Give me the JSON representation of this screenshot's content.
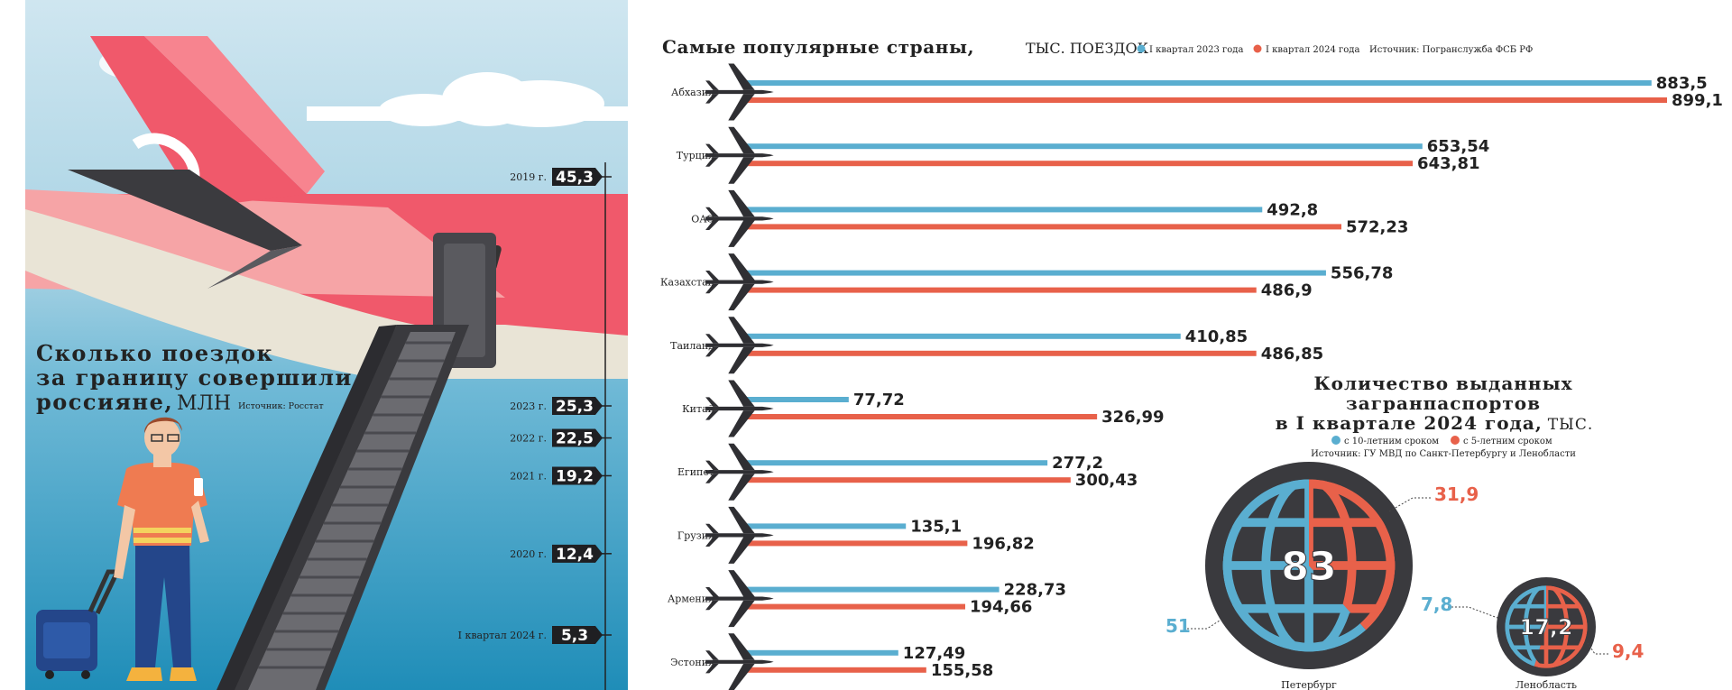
{
  "chart_data": [
    {
      "type": "bar",
      "title": "Сколько поездок за границу совершили россияне,",
      "unit": "МЛН",
      "source": "Источник: Росстат",
      "categories": [
        "2019 г.",
        "2023 г.",
        "2022 г.",
        "2021 г.",
        "2020 г.",
        "I квартал 2024 г."
      ],
      "values": [
        45.3,
        25.3,
        22.5,
        19.2,
        12.4,
        5.3
      ],
      "value_labels": [
        "45,3",
        "25,3",
        "22,5",
        "19,2",
        "12,4",
        "5,3"
      ]
    },
    {
      "type": "bar",
      "orientation": "horizontal",
      "title": "Самые популярные страны,",
      "unit": "ТЫС. ПОЕЗДОК",
      "source": "Источник: Погранслужба ФСБ РФ",
      "categories": [
        "Абхазия",
        "Турция",
        "ОАЭ",
        "Казахстан",
        "Таиланд",
        "Китай",
        "Египет",
        "Грузия",
        "Армения",
        "Эстония"
      ],
      "series": [
        {
          "name": "I квартал 2023 года",
          "color": "#5aaed0",
          "values": [
            883.5,
            653.54,
            492.8,
            556.78,
            410.85,
            77.72,
            277.2,
            135.1,
            228.73,
            127.49
          ],
          "labels": [
            "883,5",
            "653,54",
            "492,8",
            "556,78",
            "410,85",
            "77,72",
            "277,2",
            "135,1",
            "228,73",
            "127,49"
          ]
        },
        {
          "name": "I квартал 2024 года",
          "color": "#e8614a",
          "values": [
            899.1,
            643.81,
            572.23,
            486.9,
            486.85,
            326.99,
            300.43,
            196.82,
            194.66,
            155.58
          ],
          "labels": [
            "899,1",
            "643,81",
            "572,23",
            "486,9",
            "486,85",
            "326,99",
            "300,43",
            "196,82",
            "194,66",
            "155,58"
          ]
        }
      ]
    },
    {
      "type": "pie",
      "title": "Количество выданных загранпаспортов в I квартале 2024 года,",
      "unit": "ТЫС.",
      "source": "Источник: ГУ МВД по Санкт-Петербургу и Ленобласти",
      "legend": [
        "с 10-летним сроком",
        "с 5-летним сроком"
      ],
      "colors": [
        "#5aaed0",
        "#e8614a"
      ],
      "pies": [
        {
          "name": "Петербург",
          "total": 83,
          "total_label": "83",
          "values": [
            51,
            31.9
          ],
          "labels": [
            "51",
            "31,9"
          ]
        },
        {
          "name": "Ленобласть",
          "total": 17.2,
          "total_label": "17,2",
          "values": [
            7.8,
            9.4
          ],
          "labels": [
            "7,8",
            "9,4"
          ]
        }
      ]
    }
  ]
}
